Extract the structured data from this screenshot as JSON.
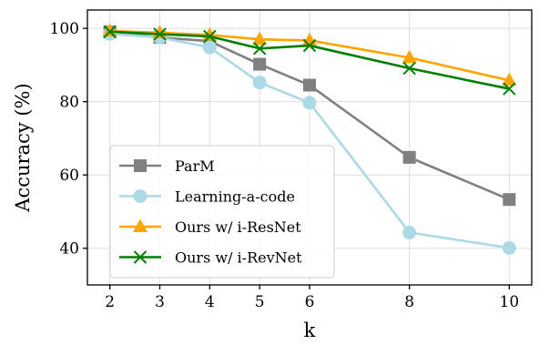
{
  "chart_data": {
    "type": "line",
    "xlabel": "k",
    "ylabel": "Accuracy (%)",
    "x": [
      2,
      3,
      4,
      5,
      6,
      8,
      10
    ],
    "xticks": [
      2,
      3,
      4,
      5,
      6,
      8,
      10
    ],
    "yticks": [
      40,
      60,
      80,
      100
    ],
    "xlim": [
      1.55,
      10.45
    ],
    "ylim": [
      30,
      105
    ],
    "grid": true,
    "legend_position": "lower-left",
    "series": [
      {
        "name": "ParM",
        "color": "#808080",
        "marker": "square",
        "values": [
          99.0,
          97.5,
          96.5,
          90.2,
          84.5,
          64.8,
          53.3
        ]
      },
      {
        "name": "Learning-a-code",
        "color": "#add8e6",
        "marker": "circle",
        "values": [
          98.5,
          97.5,
          94.8,
          85.2,
          79.7,
          44.3,
          40.1
        ]
      },
      {
        "name": "Ours w/ i-ResNet",
        "color": "#ffa500",
        "marker": "triangle",
        "values": [
          99.3,
          98.8,
          98.2,
          97.0,
          96.7,
          92.0,
          85.8
        ]
      },
      {
        "name": "Ours w/ i-RevNet",
        "color": "#008000",
        "marker": "x",
        "values": [
          99.1,
          98.4,
          97.8,
          94.5,
          95.3,
          89.1,
          83.5
        ]
      }
    ]
  }
}
